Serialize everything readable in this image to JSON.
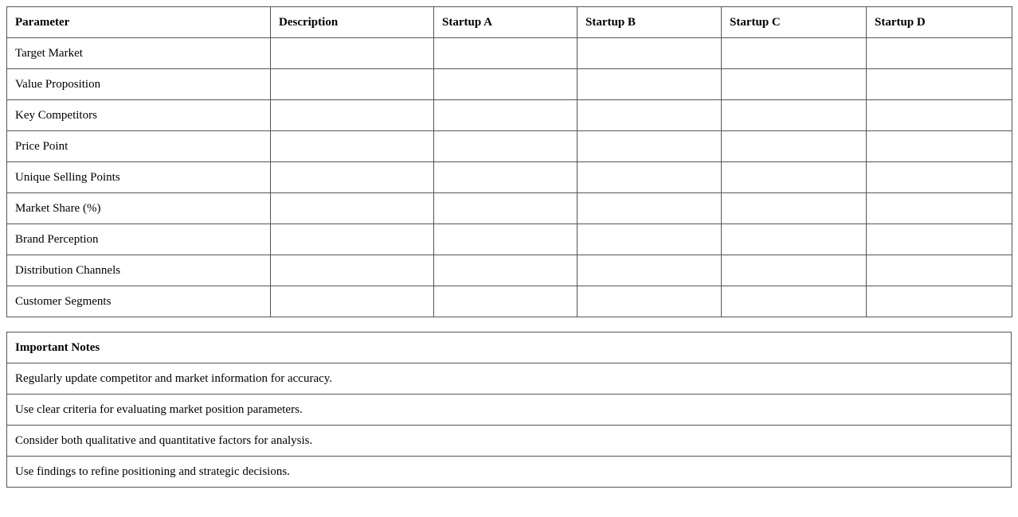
{
  "comparison_table": {
    "headers": [
      "Parameter",
      "Description",
      "Startup A",
      "Startup B",
      "Startup C",
      "Startup D"
    ],
    "rows": [
      "Target Market",
      "Value Proposition",
      "Key Competitors",
      "Price Point",
      "Unique Selling Points",
      "Market Share (%)",
      "Brand Perception",
      "Distribution Channels",
      "Customer Segments"
    ]
  },
  "notes_table": {
    "title": "Important Notes",
    "items": [
      "Regularly update competitor and market information for accuracy.",
      "Use clear criteria for evaluating market position parameters.",
      "Consider both qualitative and quantitative factors for analysis.",
      "Use findings to refine positioning and strategic decisions."
    ]
  }
}
